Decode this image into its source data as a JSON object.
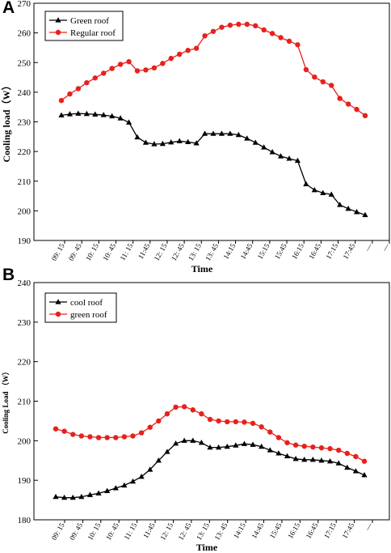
{
  "chart_data": [
    {
      "panel": "A",
      "type": "line",
      "xlabel": "Time",
      "ylabel": "Cooling load（W）",
      "ylim": [
        190,
        270
      ],
      "yticks": [
        190,
        200,
        210,
        220,
        230,
        240,
        250,
        260,
        270
      ],
      "xtick_labels": [
        "09: 15",
        "09: 45",
        "10: 15",
        "10: 45",
        "11: 15",
        "11:45",
        "12: 15",
        "12: 45",
        "13: 15",
        "13: 45",
        "14:15",
        "14:45",
        "15:15",
        "15:45",
        "16:15",
        "16:45",
        "17:15",
        "17:45",
        "—",
        "—"
      ],
      "legend_position": "top-left",
      "series": [
        {
          "name": "Green roof",
          "color": "#000000",
          "marker": "triangle",
          "values": [
            232.2,
            232.6,
            232.8,
            232.7,
            232.5,
            232.3,
            231.9,
            231.2,
            229.8,
            224.8,
            223.0,
            222.5,
            222.6,
            223.1,
            223.5,
            223.2,
            222.8,
            226.0,
            226.0,
            226.0,
            226.0,
            225.6,
            224.4,
            223.0,
            221.4,
            219.8,
            218.4,
            217.6,
            216.9,
            209.0,
            207.0,
            206.0,
            205.5,
            202.0,
            200.7,
            199.6,
            198.6
          ]
        },
        {
          "name": "Regular roof",
          "color": "#e8201c",
          "marker": "circle",
          "values": [
            237.2,
            239.4,
            241.2,
            243.2,
            244.8,
            246.4,
            248.0,
            249.4,
            250.3,
            247.2,
            247.5,
            248.2,
            249.7,
            251.4,
            252.8,
            254.1,
            254.8,
            259.0,
            260.5,
            261.9,
            262.6,
            262.9,
            262.9,
            262.4,
            261.0,
            259.8,
            258.4,
            257.2,
            256.0,
            247.6,
            245.1,
            243.5,
            242.3,
            237.9,
            236.0,
            234.2,
            232.1
          ]
        }
      ]
    },
    {
      "panel": "B",
      "type": "line",
      "xlabel": "Time",
      "ylabel": "Cooling Load （W）",
      "ylim": [
        180,
        240
      ],
      "yticks": [
        180,
        190,
        200,
        210,
        220,
        230,
        240
      ],
      "xtick_labels": [
        "09: 15",
        "09: 45",
        "10: 15",
        "10: 45",
        "11: 15",
        "11:45",
        "12: 15",
        "12: 45",
        "13: 15",
        "13: 45",
        "14:15",
        "14:45",
        "15:45",
        "16:15",
        "16:45",
        "17:15",
        "17:45",
        "—"
      ],
      "legend_position": "top-left",
      "series": [
        {
          "name": "cool roof",
          "color": "#000000",
          "marker": "triangle",
          "values": [
            185.8,
            185.6,
            185.6,
            185.8,
            186.3,
            186.7,
            187.3,
            188.0,
            188.7,
            189.7,
            190.9,
            192.7,
            195.0,
            197.2,
            199.3,
            200.0,
            200.0,
            199.5,
            198.3,
            198.3,
            198.5,
            198.8,
            199.2,
            199.0,
            198.5,
            197.6,
            196.8,
            196.1,
            195.4,
            195.2,
            195.2,
            195.0,
            194.8,
            194.3,
            193.2,
            192.3,
            191.3
          ]
        },
        {
          "name": "green roof",
          "color": "#e8201c",
          "marker": "circle",
          "values": [
            203.0,
            202.4,
            201.6,
            201.2,
            201.0,
            200.8,
            200.8,
            200.8,
            201.0,
            201.2,
            202.0,
            203.4,
            205.0,
            206.8,
            208.5,
            208.6,
            207.8,
            206.8,
            205.4,
            205.0,
            204.8,
            204.8,
            204.7,
            204.4,
            203.5,
            202.2,
            200.8,
            199.5,
            198.9,
            198.6,
            198.4,
            198.2,
            198.0,
            197.6,
            196.8,
            196.0,
            194.8
          ]
        }
      ]
    }
  ]
}
